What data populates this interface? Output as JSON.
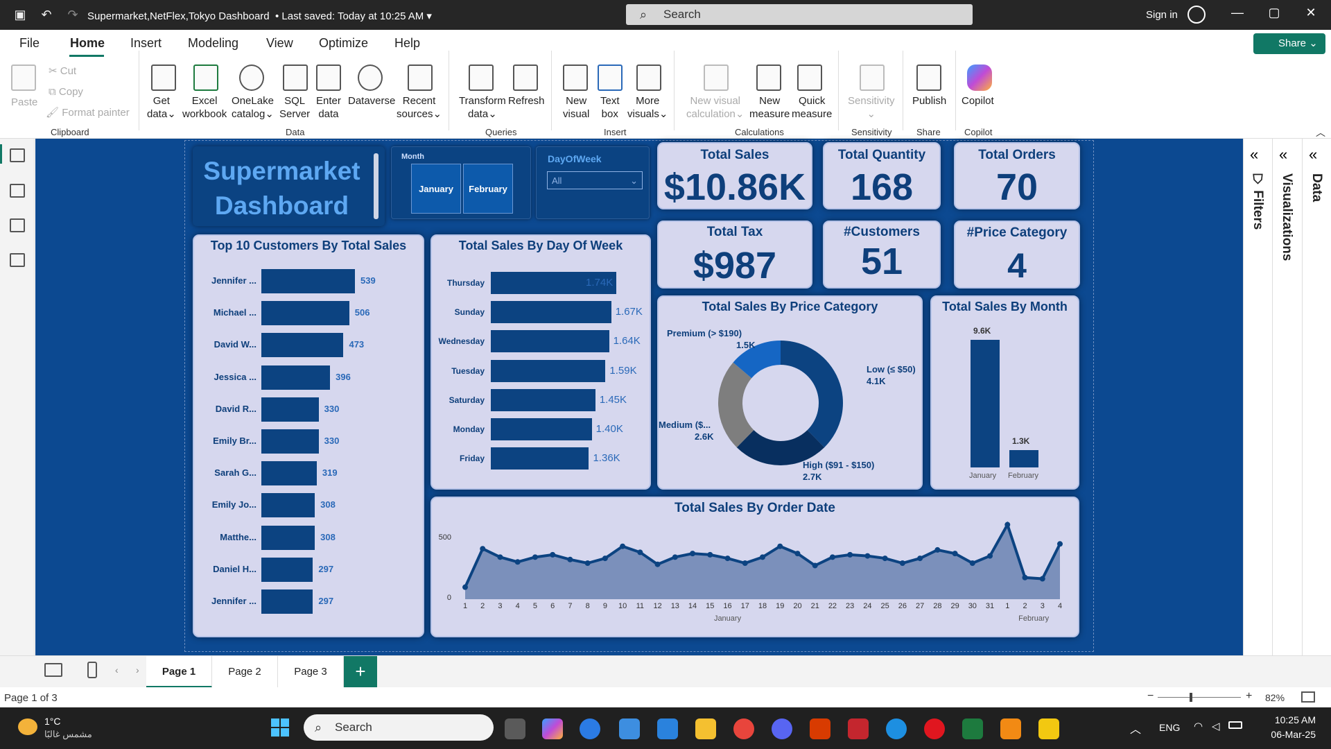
{
  "titlebar": {
    "title": "Supermarket,NetFlex,Tokyo Dashboard",
    "saved": "• Last saved: Today at 10:25 AM",
    "search_placeholder": "Search",
    "sign_in": "Sign in"
  },
  "menu": {
    "items": [
      "File",
      "Home",
      "Insert",
      "Modeling",
      "View",
      "Optimize",
      "Help"
    ],
    "share": "Share"
  },
  "ribbon": {
    "clipboard": {
      "paste": "Paste",
      "cut": "Cut",
      "copy": "Copy",
      "format_painter": "Format painter",
      "group": "Clipboard"
    },
    "data": {
      "get_data": [
        "Get",
        "data"
      ],
      "excel": [
        "Excel",
        "workbook"
      ],
      "onelake": [
        "OneLake",
        "catalog"
      ],
      "sql": [
        "SQL",
        "Server"
      ],
      "enter": [
        "Enter",
        "data"
      ],
      "dataverse": "Dataverse",
      "recent": [
        "Recent",
        "sources"
      ],
      "group": "Data"
    },
    "queries": {
      "transform": [
        "Transform",
        "data"
      ],
      "refresh": "Refresh",
      "group": "Queries"
    },
    "insert": {
      "new_visual": [
        "New",
        "visual"
      ],
      "text_box": [
        "Text",
        "box"
      ],
      "more_visuals": [
        "More",
        "visuals"
      ],
      "group": "Insert"
    },
    "calculations": {
      "new_visual_calc": [
        "New visual",
        "calculation"
      ],
      "new_measure": [
        "New",
        "measure"
      ],
      "quick_measure": [
        "Quick",
        "measure"
      ],
      "group": "Calculations"
    },
    "sensitivity": {
      "label": "Sensitivity",
      "group": "Sensitivity"
    },
    "share": {
      "publish": "Publish",
      "group": "Share"
    },
    "copilot": {
      "label": "Copilot",
      "group": "Copilot"
    }
  },
  "right_pane": {
    "filters": "Filters",
    "visualizations": "Visualizations",
    "data": "Data"
  },
  "dashboard": {
    "title_line1": "Supermarket",
    "title_line2": "Dashboard",
    "month_slicer": {
      "label": "Month",
      "options": [
        "January",
        "February"
      ]
    },
    "dow_slicer": {
      "label": "DayOfWeek",
      "value": "All"
    },
    "kpis": [
      {
        "title": "Total Sales",
        "value": "$10.86K"
      },
      {
        "title": "Total Quantity",
        "value": "168"
      },
      {
        "title": "Total Orders",
        "value": "70"
      },
      {
        "title": "Total Tax",
        "value": "$987"
      },
      {
        "title": "#Customers",
        "value": "51"
      },
      {
        "title": "#Price Category",
        "value": "4"
      }
    ]
  },
  "chart_data": [
    {
      "type": "bar",
      "title": "Top 10 Customers By Total Sales",
      "categories": [
        "Jennifer ...",
        "Michael ...",
        "David W...",
        "Jessica ...",
        "David R...",
        "Emily Br...",
        "Sarah G...",
        "Emily Jo...",
        "Matthe...",
        "Daniel H...",
        "Jennifer ..."
      ],
      "values": [
        539,
        506,
        473,
        396,
        330,
        330,
        319,
        308,
        308,
        297,
        297
      ],
      "labels": [
        "539",
        "506",
        "473",
        "396",
        "330",
        "330",
        "319",
        "308",
        "308",
        "297",
        "297"
      ]
    },
    {
      "type": "bar",
      "title": "Total Sales By Day Of Week",
      "categories": [
        "Thursday",
        "Sunday",
        "Wednesday",
        "Tuesday",
        "Saturday",
        "Monday",
        "Friday"
      ],
      "values": [
        1740,
        1670,
        1640,
        1590,
        1450,
        1400,
        1360
      ],
      "labels": [
        "1.74K",
        "1.67K",
        "1.64K",
        "1.59K",
        "1.45K",
        "1.40K",
        "1.36K"
      ]
    },
    {
      "type": "pie",
      "title": "Total Sales By Price Category",
      "categories": [
        "Low (≤ $50)",
        "High ($91 - $150)",
        "Medium ($...",
        "Premium (> $190)"
      ],
      "values": [
        4100,
        2700,
        2600,
        1500
      ],
      "labels": [
        "4.1K",
        "2.7K",
        "2.6K",
        "1.5K"
      ],
      "colors": [
        "#0c4381",
        "#082f5f",
        "#7e7e7e",
        "#1566c4"
      ]
    },
    {
      "type": "bar",
      "title": "Total Sales By Month",
      "categories": [
        "January",
        "February"
      ],
      "values": [
        9600,
        1300
      ],
      "labels": [
        "9.6K",
        "1.3K"
      ]
    },
    {
      "type": "area",
      "title": "Total Sales By Order Date",
      "x": [
        "1",
        "2",
        "3",
        "4",
        "5",
        "6",
        "7",
        "8",
        "9",
        "10",
        "11",
        "12",
        "13",
        "14",
        "15",
        "16",
        "17",
        "18",
        "19",
        "20",
        "21",
        "22",
        "23",
        "24",
        "25",
        "26",
        "27",
        "28",
        "29",
        "30",
        "31",
        "1",
        "2",
        "3",
        "4"
      ],
      "x_groups": [
        {
          "label": "January",
          "from": 0,
          "to": 30
        },
        {
          "label": "February",
          "from": 31,
          "to": 34
        }
      ],
      "values": [
        100,
        420,
        350,
        310,
        350,
        370,
        330,
        300,
        340,
        440,
        390,
        290,
        350,
        380,
        370,
        340,
        300,
        350,
        440,
        380,
        280,
        350,
        370,
        360,
        340,
        300,
        340,
        410,
        380,
        300,
        360,
        620,
        180,
        170,
        460
      ],
      "yticks": [
        "0",
        "500"
      ],
      "ylim": [
        0,
        600
      ]
    }
  ],
  "pages": {
    "tabs": [
      "Page 1",
      "Page 2",
      "Page 3"
    ],
    "add": "+"
  },
  "status": {
    "page": "Page 1 of 3",
    "zoom": "82%"
  },
  "taskbar": {
    "temp": "1°C",
    "weather": "مشمس غالبًا",
    "search": "Search",
    "lang": "ENG",
    "time": "10:25 AM",
    "date": "06-Mar-25"
  }
}
